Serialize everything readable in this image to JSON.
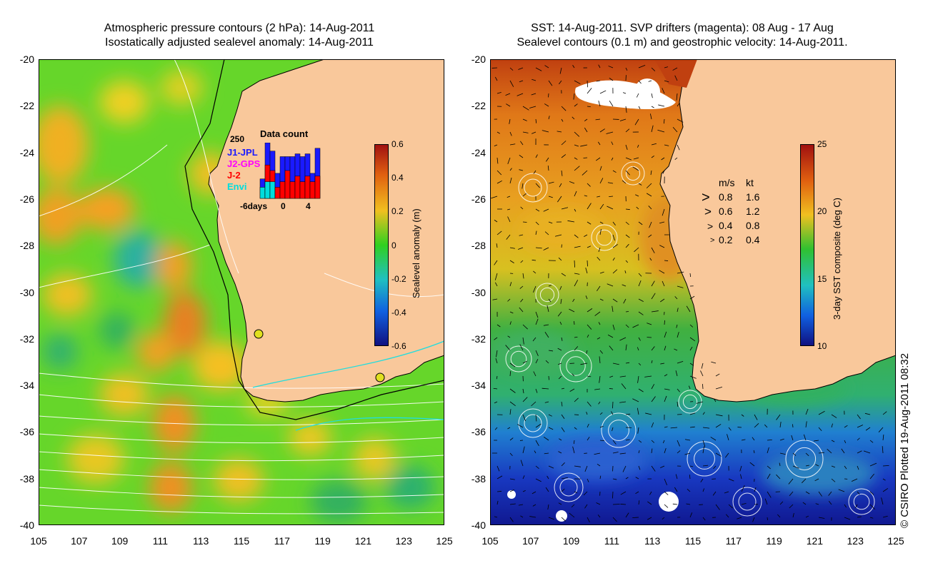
{
  "left_panel": {
    "title_line1": "Atmospheric pressure contours (2 hPa): 14-Aug-2011",
    "title_line2": "Isostatically adjusted sealevel anomaly: 14-Aug-2011",
    "y_ticks": [
      "-20",
      "-22",
      "-24",
      "-26",
      "-28",
      "-30",
      "-32",
      "-34",
      "-36",
      "-38",
      "-40"
    ],
    "x_ticks": [
      "105",
      "107",
      "109",
      "111",
      "113",
      "115",
      "117",
      "119",
      "121",
      "123",
      "125"
    ],
    "colorbar": {
      "label": "Sealevel anomaly (m)",
      "ticks": [
        "0.6",
        "0.4",
        "0.2",
        "0",
        "-0.2",
        "-0.4",
        "-0.6"
      ]
    },
    "data_count": {
      "title": "Data count",
      "max_label": "250",
      "missions": [
        {
          "name": "J1-JPL",
          "color": "#1a1aff"
        },
        {
          "name": "J2-GPS",
          "color": "#ff00ff"
        },
        {
          "name": "J-2",
          "color": "#ff0000"
        },
        {
          "name": "Envi",
          "color": "#00dddd"
        }
      ],
      "x_ticks": [
        "-6days",
        "0",
        "4"
      ],
      "bars": [
        {
          "total": 0.35,
          "j2": 0.0,
          "envi": 0.2
        },
        {
          "total": 1.0,
          "j2": 0.6,
          "envi": 0.3
        },
        {
          "total": 0.85,
          "j2": 0.5,
          "envi": 0.3
        },
        {
          "total": 0.45,
          "j2": 0.2,
          "envi": 0.0
        },
        {
          "total": 0.75,
          "j2": 0.3,
          "envi": 0.0
        },
        {
          "total": 0.75,
          "j2": 0.5,
          "envi": 0.0
        },
        {
          "total": 0.75,
          "j2": 0.3,
          "envi": 0.0
        },
        {
          "total": 0.8,
          "j2": 0.4,
          "envi": 0.0
        },
        {
          "total": 0.75,
          "j2": 0.3,
          "envi": 0.0
        },
        {
          "total": 0.8,
          "j2": 0.4,
          "envi": 0.0
        },
        {
          "total": 0.45,
          "j2": 0.3,
          "envi": 0.0
        },
        {
          "total": 0.9,
          "j2": 0.4,
          "envi": 0.0
        }
      ]
    }
  },
  "right_panel": {
    "title_line1": "SST: 14-Aug-2011. SVP drifters (magenta): 08 Aug - 17 Aug",
    "title_line2": "Sealevel contours (0.1 m) and geostrophic velocity: 14-Aug-2011.",
    "y_ticks": [
      "-20",
      "-22",
      "-24",
      "-26",
      "-28",
      "-30",
      "-32",
      "-34",
      "-36",
      "-38",
      "-40"
    ],
    "x_ticks": [
      "105",
      "107",
      "109",
      "111",
      "113",
      "115",
      "117",
      "119",
      "121",
      "123",
      "125"
    ],
    "colorbar": {
      "label": "3-day SST composite (deg C)",
      "ticks": [
        "25",
        "20",
        "15",
        "10"
      ]
    },
    "velocity_legend": {
      "header_ms": "m/s",
      "header_kt": "kt",
      "rows": [
        {
          "ms": "0.8",
          "kt": "1.6"
        },
        {
          "ms": "0.6",
          "kt": "1.2"
        },
        {
          "ms": "0.4",
          "kt": "0.8"
        },
        {
          "ms": "0.2",
          "kt": "0.4"
        }
      ]
    }
  },
  "credit": "© CSIRO Plotted 19-Aug-2011 08:32",
  "colors": {
    "land": "#f9c89b",
    "sla_mid": "#22cc22",
    "sst_warm": "#e09020",
    "sst_cool": "#1a40d0"
  }
}
